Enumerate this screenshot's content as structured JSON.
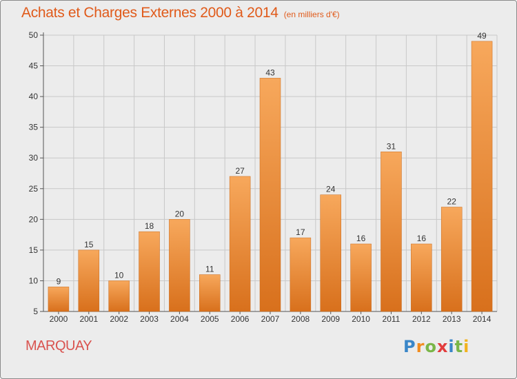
{
  "header": {
    "title": "Achats et Charges Externes 2000 à 2014",
    "subtitle": "(en milliers d'€)"
  },
  "footer": {
    "commune": "MARQUAY",
    "brand_letters": [
      "P",
      "r",
      "o",
      "x",
      "i",
      "t",
      "i"
    ],
    "brand_colors": [
      "#3a86c8",
      "#f28c1e",
      "#7ab648",
      "#e23c3c",
      "#3a86c8",
      "#7ab648",
      "#f2b21e"
    ]
  },
  "colors": {
    "bar_light": "#f7a55a",
    "bar_dark": "#d9731f",
    "title": "#e05a1a",
    "grid": "#c8c8c8"
  },
  "chart_data": {
    "type": "bar",
    "title": "Achats et Charges Externes 2000 à 2014",
    "subtitle": "(en milliers d'€)",
    "categories": [
      "2000",
      "2001",
      "2002",
      "2003",
      "2004",
      "2005",
      "2006",
      "2007",
      "2008",
      "2009",
      "2010",
      "2011",
      "2012",
      "2013",
      "2014"
    ],
    "values": [
      9,
      15,
      10,
      18,
      20,
      11,
      27,
      43,
      17,
      24,
      16,
      31,
      16,
      22,
      49
    ],
    "ylim": [
      5,
      50
    ],
    "yticks": [
      5,
      10,
      15,
      20,
      25,
      30,
      35,
      40,
      45,
      50
    ],
    "grid": true,
    "xlabel": "",
    "ylabel": ""
  }
}
